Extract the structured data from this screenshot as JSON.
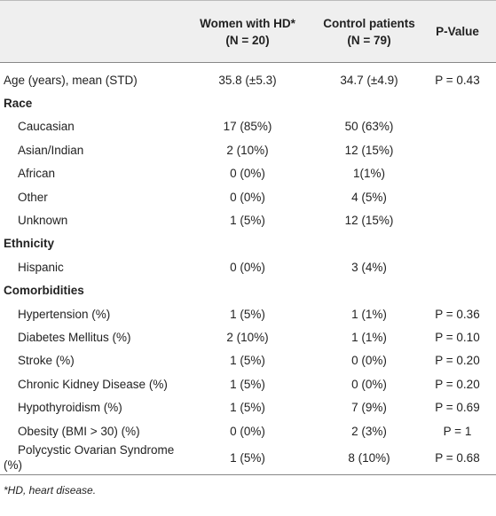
{
  "table": {
    "header": {
      "women": [
        "Women with HD*",
        "(N = 20)"
      ],
      "control": [
        "Control patients",
        "(N = 79)"
      ],
      "pvalue": "P-Value"
    },
    "age": [
      "Age (years), mean (STD)",
      "35.8 (±5.3)",
      "34.7 (±4.9)",
      "P = 0.43"
    ],
    "sections": [
      {
        "title": "Race",
        "rows": [
          [
            "Caucasian",
            "17 (85%)",
            "50 (63%)"
          ],
          [
            "Asian/Indian",
            "2 (10%)",
            "12 (15%)"
          ],
          [
            "African",
            "0 (0%)",
            "1(1%)"
          ],
          [
            "Other",
            "0 (0%)",
            "4 (5%)"
          ],
          [
            "Unknown",
            "1 (5%)",
            "12 (15%)"
          ]
        ]
      },
      {
        "title": "Ethnicity",
        "rows": [
          [
            "Hispanic",
            "0 (0%)",
            "3 (4%)"
          ]
        ]
      },
      {
        "title": "Comorbidities",
        "rows": [
          [
            "Hypertension (%)",
            "1 (5%)",
            "1 (1%)",
            "P = 0.36"
          ],
          [
            "Diabetes Mellitus (%)",
            "2 (10%)",
            "1 (1%)",
            "P = 0.10"
          ],
          [
            "Stroke (%)",
            "1 (5%)",
            "0 (0%)",
            "P = 0.20"
          ],
          [
            "Chronic Kidney Disease (%)",
            "1 (5%)",
            "0 (0%)",
            "P = 0.20"
          ],
          [
            "Hypothyroidism (%)",
            "1 (5%)",
            "7 (9%)",
            "P = 0.69"
          ],
          [
            "Obesity (BMI > 30) (%)",
            "0 (0%)",
            "2 (3%)",
            "P = 1"
          ],
          [
            "Polycystic Ovarian Syndrome (%)",
            "1 (5%)",
            "8 (10%)",
            "P = 0.68"
          ]
        ]
      }
    ],
    "footnote": "*HD, heart disease."
  }
}
